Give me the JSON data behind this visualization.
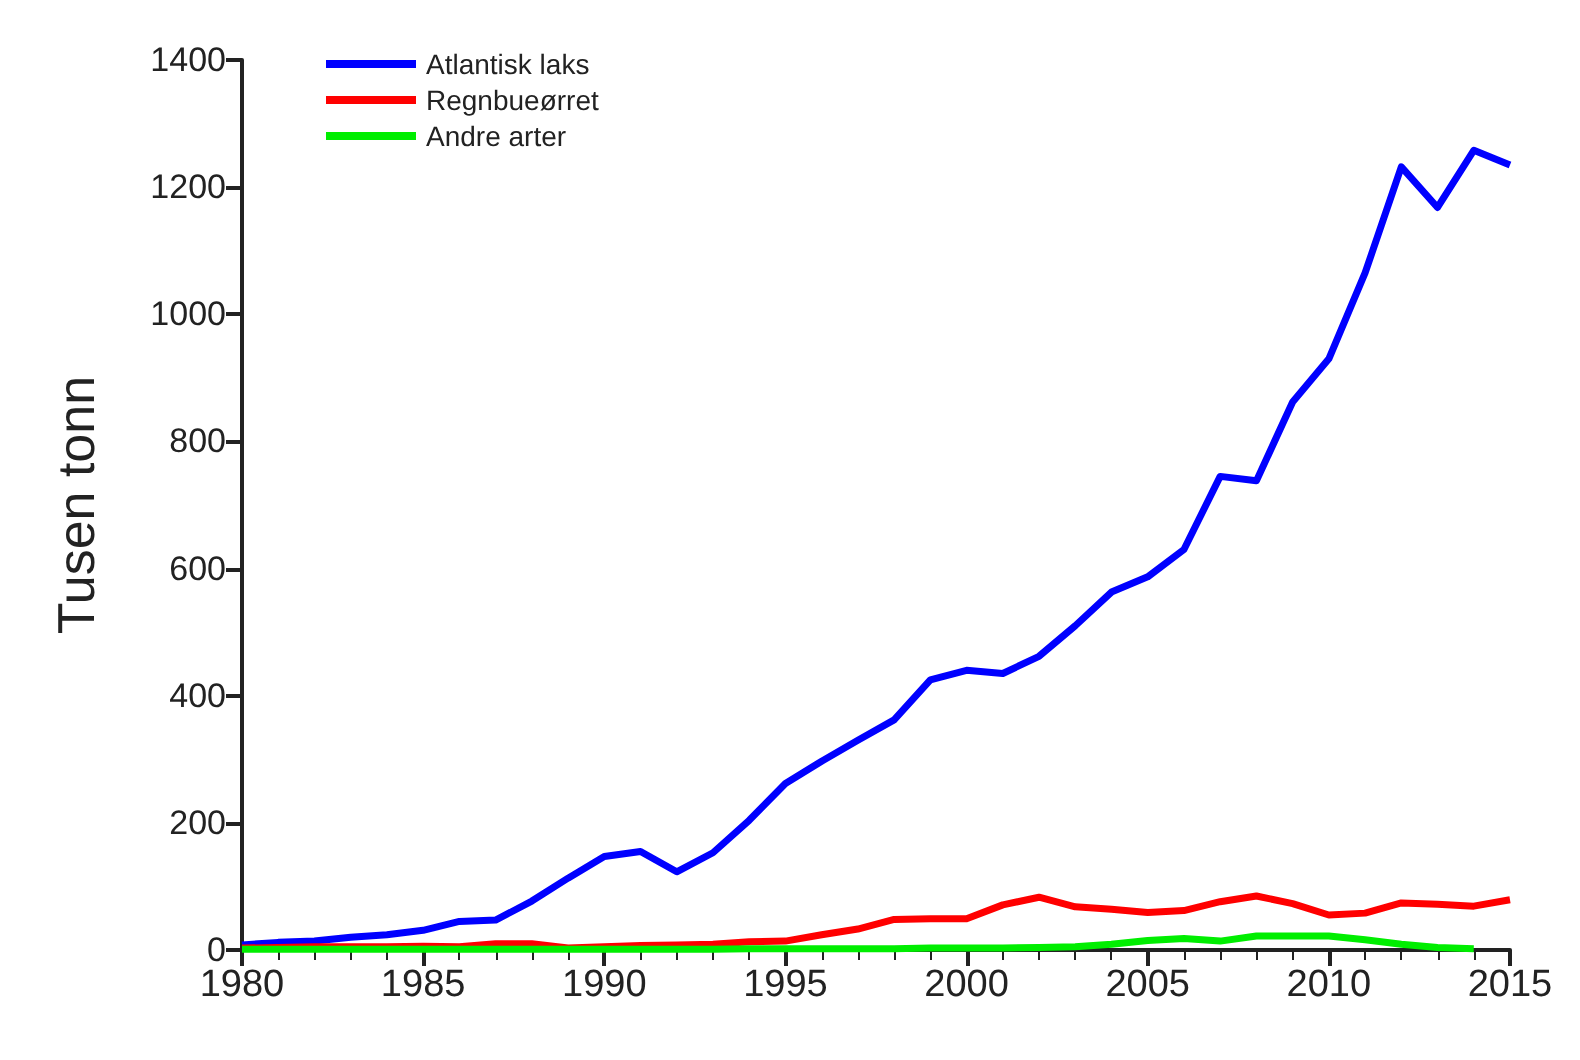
{
  "chart_data": {
    "type": "line",
    "ylabel": "Tusen tonn",
    "x": [
      1980,
      1981,
      1982,
      1983,
      1984,
      1985,
      1986,
      1987,
      1988,
      1989,
      1990,
      1991,
      1992,
      1993,
      1994,
      1995,
      1996,
      1997,
      1998,
      1999,
      2000,
      2001,
      2002,
      2003,
      2004,
      2005,
      2006,
      2007,
      2008,
      2009,
      2010,
      2011,
      2012,
      2013,
      2014,
      2015
    ],
    "series": [
      {
        "name": "Atlantisk laks",
        "color": "#0000ff",
        "values": [
          8,
          12,
          14,
          20,
          24,
          31,
          45,
          47,
          77,
          113,
          147,
          155,
          123,
          153,
          204,
          262,
          297,
          330,
          362,
          425,
          440,
          435,
          462,
          510,
          563,
          587,
          630,
          745,
          738,
          862,
          930,
          1065,
          1232,
          1168,
          1258,
          1235
        ]
      },
      {
        "name": "Regnbueørret",
        "color": "#ff0000",
        "values": [
          3,
          4,
          5,
          5,
          5,
          6,
          5,
          10,
          10,
          3,
          5,
          7,
          8,
          9,
          13,
          14,
          24,
          33,
          48,
          49,
          49,
          71,
          83,
          68,
          64,
          59,
          62,
          76,
          85,
          73,
          55,
          58,
          74,
          72,
          69,
          79
        ]
      },
      {
        "name": "Andre arter",
        "color": "#00ee00",
        "values": [
          1,
          1,
          1,
          1,
          1,
          1,
          1,
          1,
          1,
          1,
          1,
          1,
          1,
          1,
          2,
          2,
          2,
          2,
          2,
          3,
          3,
          3,
          4,
          5,
          9,
          15,
          18,
          14,
          22,
          22,
          22,
          16,
          9,
          4,
          2,
          null
        ]
      }
    ],
    "xlim": [
      1980,
      2015
    ],
    "xticks": [
      1980,
      1985,
      1990,
      1995,
      2000,
      2005,
      2010,
      2015
    ],
    "ylim": [
      0,
      1400
    ],
    "yticks": [
      0,
      200,
      400,
      600,
      800,
      1000,
      1200,
      1400
    ],
    "grid": false,
    "legend": "top left",
    "marker": "none",
    "line_style": "solid"
  }
}
